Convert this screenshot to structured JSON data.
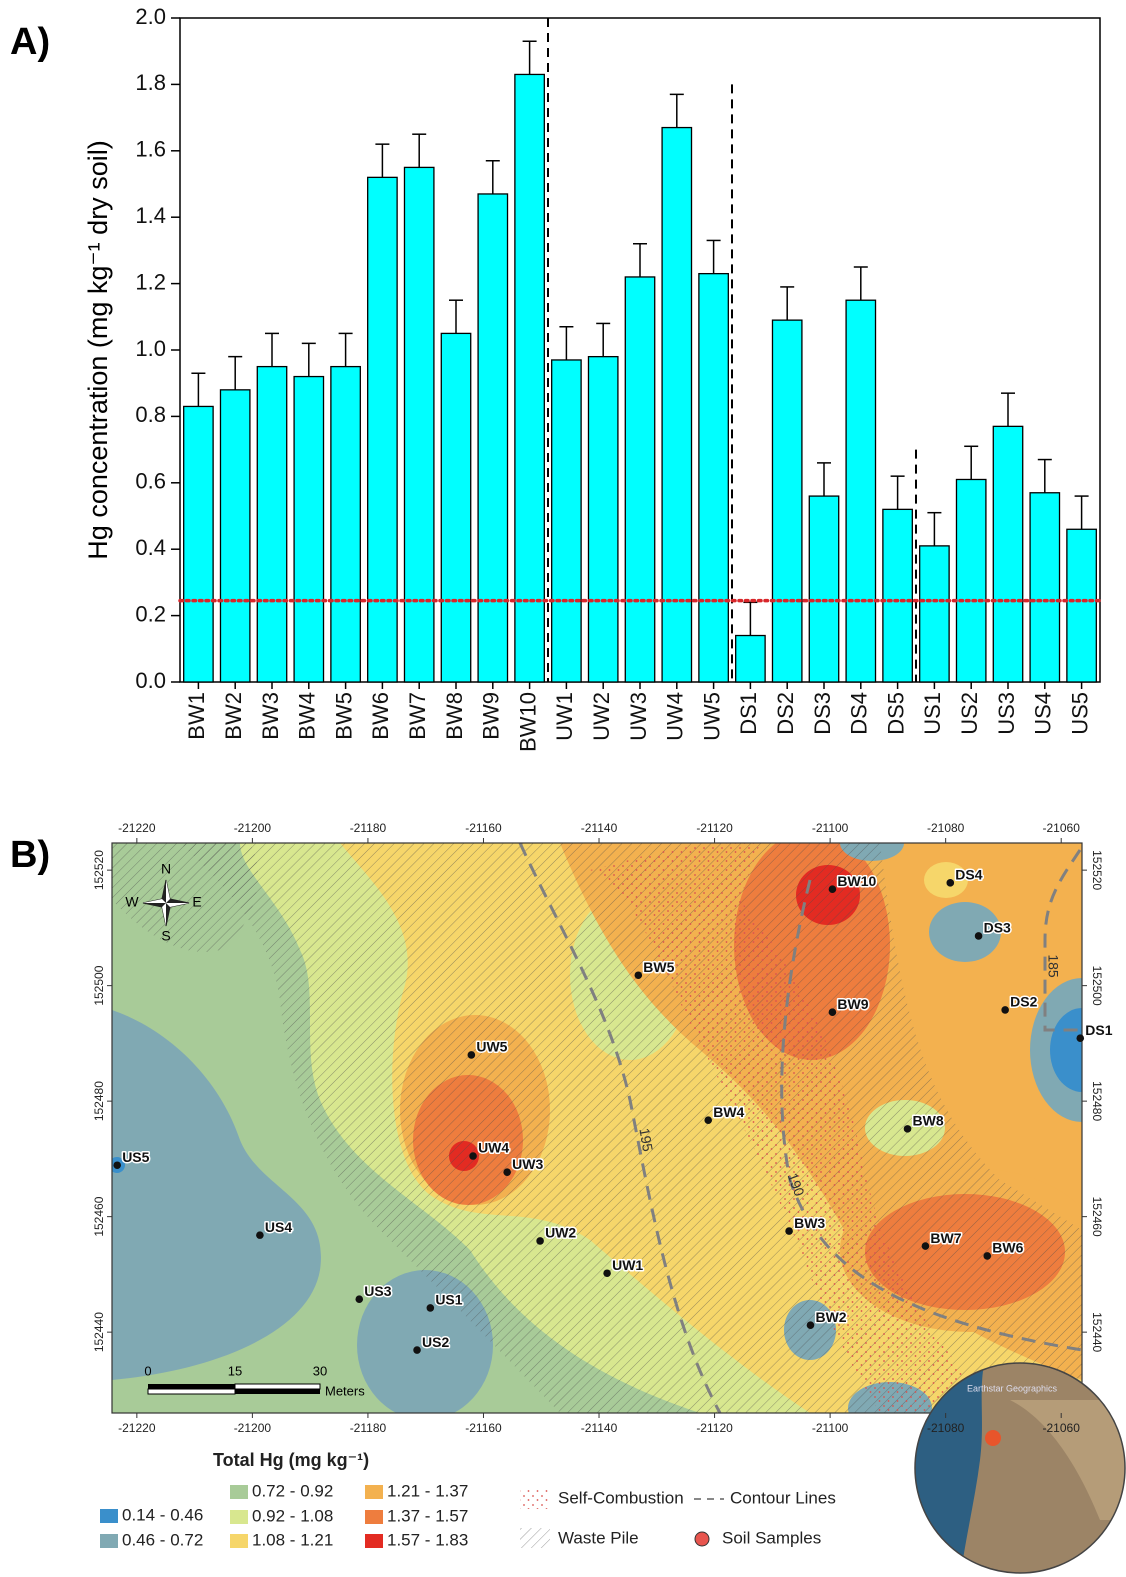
{
  "panel_labels": [
    "A)",
    "B)"
  ],
  "chart_data": {
    "type": "bar",
    "y_label": "Hg concentration (mg kg⁻¹ dry soil)",
    "categories": [
      "BW1",
      "BW2",
      "BW3",
      "BW4",
      "BW5",
      "BW6",
      "BW7",
      "BW8",
      "BW9",
      "BW10",
      "UW1",
      "UW2",
      "UW3",
      "UW4",
      "UW5",
      "DS1",
      "DS2",
      "DS3",
      "DS4",
      "DS5",
      "US1",
      "US2",
      "US3",
      "US4",
      "US5"
    ],
    "values": [
      0.83,
      0.88,
      0.95,
      0.92,
      0.95,
      1.52,
      1.55,
      1.05,
      1.47,
      1.83,
      0.97,
      0.98,
      1.22,
      1.67,
      1.23,
      0.14,
      1.09,
      0.56,
      1.15,
      0.52,
      0.41,
      0.61,
      0.77,
      0.57,
      0.46
    ],
    "errors": [
      0.1,
      0.1,
      0.1,
      0.1,
      0.1,
      0.1,
      0.1,
      0.1,
      0.1,
      0.1,
      0.1,
      0.1,
      0.1,
      0.1,
      0.1,
      0.1,
      0.1,
      0.1,
      0.1,
      0.1,
      0.1,
      0.1,
      0.1,
      0.1,
      0.1
    ],
    "color": "#00ffff",
    "reference_line": 0.245,
    "reference_color": "#d9262a",
    "dividers": [
      {
        "after": 10,
        "top": 2.0
      },
      {
        "after": 15,
        "top": 1.8
      },
      {
        "after": 20,
        "top": 0.7
      }
    ],
    "ylim": [
      0,
      2
    ],
    "yticks": [
      {
        "value": 0,
        "label": "0.0"
      },
      0.2,
      0.4,
      0.6,
      0.8,
      {
        "value": 1,
        "label": "1.0"
      },
      1.2,
      1.4,
      1.6,
      1.8,
      {
        "value": 2,
        "label": "2.0"
      }
    ],
    "grid": false
  },
  "map": {
    "xlim": [
      -21224.3,
      -21056.4
    ],
    "ylim": [
      152426.0,
      152524.7
    ],
    "xticks": [
      -21220,
      -21200,
      -21180,
      -21160,
      -21140,
      -21120,
      -21100,
      -21080,
      -21060
    ],
    "yticks": [
      152520,
      152500,
      152480,
      152460,
      152440
    ],
    "samples": [
      {
        "label": "BW10",
        "x": -21099.6,
        "y": 152516.7
      },
      {
        "label": "DS4",
        "x": -21079.2,
        "y": 152517.8
      },
      {
        "label": "DS3",
        "x": -21074.3,
        "y": 152508.6
      },
      {
        "label": "DS2",
        "x": -21069.7,
        "y": 152495.8
      },
      {
        "label": "DS1",
        "x": -21056.7,
        "y": 152490.9
      },
      {
        "label": "BW5",
        "x": -21133.2,
        "y": 152501.8
      },
      {
        "label": "BW9",
        "x": -21099.6,
        "y": 152495.4
      },
      {
        "label": "UW5",
        "x": -21162.1,
        "y": 152488.0
      },
      {
        "label": "BW4",
        "x": -21121.1,
        "y": 152476.7
      },
      {
        "label": "BW8",
        "x": -21086.6,
        "y": 152475.2
      },
      {
        "label": "UW4",
        "x": -21161.8,
        "y": 152470.5
      },
      {
        "label": "UW3",
        "x": -21155.9,
        "y": 152467.7
      },
      {
        "label": "US5",
        "x": -21223.4,
        "y": 152468.9
      },
      {
        "label": "BW3",
        "x": -21107.1,
        "y": 152457.5
      },
      {
        "label": "UW2",
        "x": -21150.2,
        "y": 152455.8
      },
      {
        "label": "US4",
        "x": -21198.7,
        "y": 152456.8
      },
      {
        "label": "BW7",
        "x": -21083.5,
        "y": 152454.9
      },
      {
        "label": "BW6",
        "x": -21072.8,
        "y": 152453.2
      },
      {
        "label": "UW1",
        "x": -21138.6,
        "y": 152450.2
      },
      {
        "label": "US3",
        "x": -21181.5,
        "y": 152445.7
      },
      {
        "label": "US1",
        "x": -21169.2,
        "y": 152444.2
      },
      {
        "label": "BW2",
        "x": -21103.4,
        "y": 152441.2
      },
      {
        "label": "US2",
        "x": -21171.5,
        "y": 152436.9
      }
    ],
    "sample_color": "#111111",
    "contour_labels": [
      "195",
      "190",
      "185"
    ],
    "compass": [
      "N",
      "E",
      "S",
      "W"
    ],
    "scale_bar": {
      "ticks": [
        0,
        15,
        30
      ],
      "unit": "Meters"
    },
    "legend": {
      "title": "Total Hg (mg kg⁻¹)",
      "classes": [
        {
          "label": "0.14 - 0.46",
          "color": "#3a8fcb"
        },
        {
          "label": "0.46 - 0.72",
          "color": "#80a9b3"
        },
        {
          "label": "0.72 - 0.92",
          "color": "#a8cb98"
        },
        {
          "label": "0.92 - 1.08",
          "color": "#d8e78f"
        },
        {
          "label": "1.08 - 1.21",
          "color": "#f6d66a"
        },
        {
          "label": "1.21 - 1.37",
          "color": "#f3b14f"
        },
        {
          "label": "1.37 - 1.57",
          "color": "#ee7d3e"
        },
        {
          "label": "1.57 - 1.83",
          "color": "#e32b22"
        }
      ],
      "symbols": [
        "Self-Combustion",
        "Contour Lines",
        "Waste Pile",
        "Soil Samples"
      ],
      "sample_symbol_color": "#e8554e"
    },
    "inset_credit": "Earthstar Geographics"
  }
}
